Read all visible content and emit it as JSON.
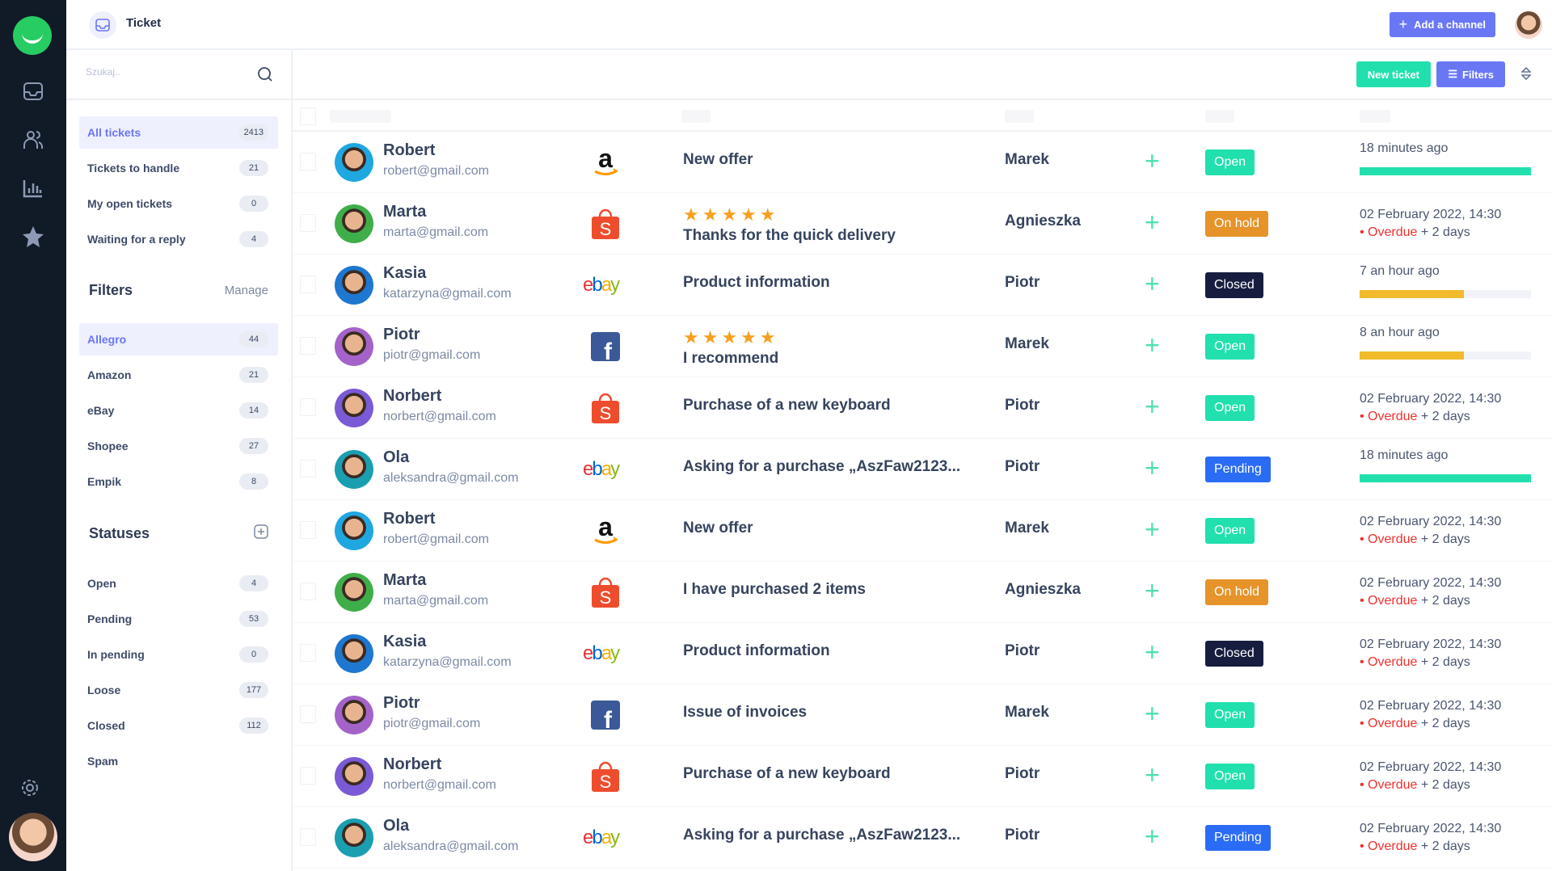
{
  "app": {
    "title": "Ticket",
    "add_channel": "Add a channel",
    "accent": "#6a77f5",
    "green": "#21e0ad"
  },
  "search": {
    "placeholder": "Szukaj.."
  },
  "views": [
    {
      "label": "All tickets",
      "count": "2413",
      "active": true
    },
    {
      "label": "Tickets to handle",
      "count": "21"
    },
    {
      "label": "My open tickets",
      "count": "0"
    },
    {
      "label": "Waiting for a reply",
      "count": "4"
    }
  ],
  "filters": {
    "title": "Filters",
    "manage": "Manage",
    "items": [
      {
        "label": "Allegro",
        "count": "44",
        "active": true
      },
      {
        "label": "Amazon",
        "count": "21"
      },
      {
        "label": "eBay",
        "count": "14"
      },
      {
        "label": "Shopee",
        "count": "27"
      },
      {
        "label": "Empik",
        "count": "8"
      }
    ]
  },
  "statuses": {
    "title": "Statuses",
    "items": [
      {
        "label": "Open",
        "count": "4"
      },
      {
        "label": "Pending",
        "count": "53"
      },
      {
        "label": "In pending",
        "count": "0"
      },
      {
        "label": "Loose",
        "count": "177"
      },
      {
        "label": "Closed",
        "count": "112"
      },
      {
        "label": "Spam",
        "count": null
      }
    ]
  },
  "toolbar": {
    "new_ticket": "New ticket",
    "filters": "Filters"
  },
  "status_colors": {
    "Open": "#21e0ad",
    "On hold": "#e6932a",
    "Closed": "#161d3f",
    "Pending": "#2b6cf5"
  },
  "tickets": [
    {
      "name": "Robert",
      "email": "robert@gmail.com",
      "channel": "amazon",
      "subject": "New offer",
      "agent": "Marek",
      "status": "Open",
      "time": "18 minutes ago",
      "progress": 100,
      "bar_color": "#21e0ad",
      "avatar": "#1fa7e0"
    },
    {
      "name": "Marta",
      "email": "marta@gmail.com",
      "channel": "shopee",
      "subject": "Thanks for the quick delivery",
      "rating": 5,
      "agent": "Agnieszka",
      "status": "On hold",
      "time": "02 February 2022, 14:30",
      "overdue": "Overdue",
      "overdue_extra": "+ 2 days",
      "avatar": "#3fae4a"
    },
    {
      "name": "Kasia",
      "email": "katarzyna@gmail.com",
      "channel": "ebay",
      "subject": "Product information",
      "agent": "Piotr",
      "status": "Closed",
      "time": "7 an hour ago",
      "progress": 61,
      "bar_color": "#f2bb2b",
      "avatar": "#1e77d0"
    },
    {
      "name": "Piotr",
      "email": "piotr@gmail.com",
      "channel": "facebook",
      "subject": "I recommend",
      "rating": 5,
      "agent": "Marek",
      "status": "Open",
      "time": "8 an hour ago",
      "progress": 61,
      "bar_color": "#f2bb2b",
      "avatar": "#a463c9"
    },
    {
      "name": "Norbert",
      "email": "norbert@gmail.com",
      "channel": "shopee",
      "subject": "Purchase of a new keyboard",
      "agent": "Piotr",
      "status": "Open",
      "time": "02 February 2022, 14:30",
      "overdue": "Overdue",
      "overdue_extra": "+ 2 days",
      "avatar": "#7b5ad6"
    },
    {
      "name": "Ola",
      "email": "aleksandra@gmail.com",
      "channel": "ebay",
      "subject": "Asking for a purchase „AszFaw2123...",
      "agent": "Piotr",
      "status": "Pending",
      "time": "18 minutes ago",
      "progress": 100,
      "bar_color": "#21e0ad",
      "avatar": "#1a9fb0"
    },
    {
      "name": "Robert",
      "email": "robert@gmail.com",
      "channel": "amazon",
      "subject": "New offer",
      "agent": "Marek",
      "status": "Open",
      "time": "02 February 2022, 14:30",
      "overdue": "Overdue",
      "overdue_extra": "+ 2 days",
      "avatar": "#1fa7e0"
    },
    {
      "name": "Marta",
      "email": "marta@gmail.com",
      "channel": "shopee",
      "subject": "I have purchased 2 items",
      "agent": "Agnieszka",
      "status": "On hold",
      "time": "02 February 2022, 14:30",
      "overdue": "Overdue",
      "overdue_extra": "+ 2 days",
      "avatar": "#3fae4a"
    },
    {
      "name": "Kasia",
      "email": "katarzyna@gmail.com",
      "channel": "ebay",
      "subject": "Product information",
      "agent": "Piotr",
      "status": "Closed",
      "time": "02 February 2022, 14:30",
      "overdue": "Overdue",
      "overdue_extra": "+ 2 days",
      "avatar": "#1e77d0"
    },
    {
      "name": "Piotr",
      "email": "piotr@gmail.com",
      "channel": "facebook",
      "subject": "Issue of invoices",
      "agent": "Marek",
      "status": "Open",
      "time": "02 February 2022, 14:30",
      "overdue": "Overdue",
      "overdue_extra": "+ 2 days",
      "avatar": "#a463c9"
    },
    {
      "name": "Norbert",
      "email": "norbert@gmail.com",
      "channel": "shopee",
      "subject": "Purchase of a new keyboard",
      "agent": "Piotr",
      "status": "Open",
      "time": "02 February 2022, 14:30",
      "overdue": "Overdue",
      "overdue_extra": "+ 2 days",
      "avatar": "#7b5ad6"
    },
    {
      "name": "Ola",
      "email": "aleksandra@gmail.com",
      "channel": "ebay",
      "subject": "Asking for a purchase „AszFaw2123...",
      "agent": "Piotr",
      "status": "Pending",
      "time": "02 February 2022, 14:30",
      "overdue": "Overdue",
      "overdue_extra": "+ 2 days",
      "avatar": "#1a9fb0"
    }
  ]
}
